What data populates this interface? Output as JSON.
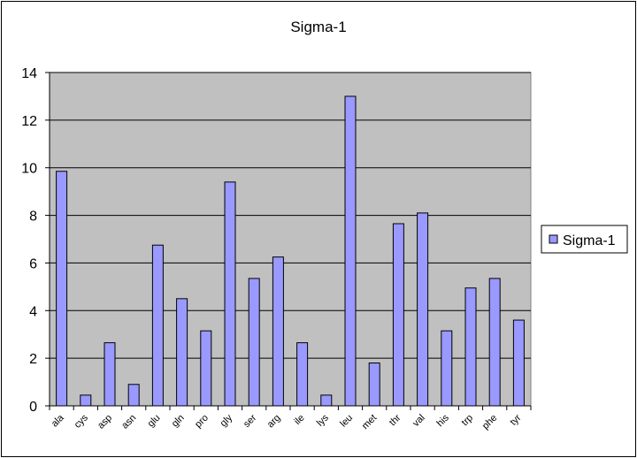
{
  "chart_data": {
    "type": "bar",
    "title": "Sigma-1",
    "categories": [
      "ala",
      "cys",
      "asp",
      "asn",
      "glu",
      "gln",
      "pro",
      "gly",
      "ser",
      "arg",
      "ile",
      "lys",
      "leu",
      "met",
      "thr",
      "val",
      "his",
      "trp",
      "phe",
      "tyr"
    ],
    "series": [
      {
        "name": "Sigma-1",
        "values": [
          9.85,
          0.45,
          2.65,
          0.9,
          6.75,
          4.5,
          3.15,
          9.4,
          5.35,
          6.25,
          2.65,
          0.45,
          13.0,
          1.8,
          7.65,
          8.1,
          3.15,
          4.95,
          5.35,
          3.6
        ]
      }
    ],
    "ylim": [
      0,
      14
    ],
    "yticks": [
      0,
      2,
      4,
      6,
      8,
      10,
      12,
      14
    ],
    "grid": true,
    "legend_position": "right",
    "colors": {
      "bar_fill": "#9999ff",
      "bar_stroke": "#000000",
      "plot_background": "#c0c0c0",
      "gridline": "#000000"
    }
  }
}
